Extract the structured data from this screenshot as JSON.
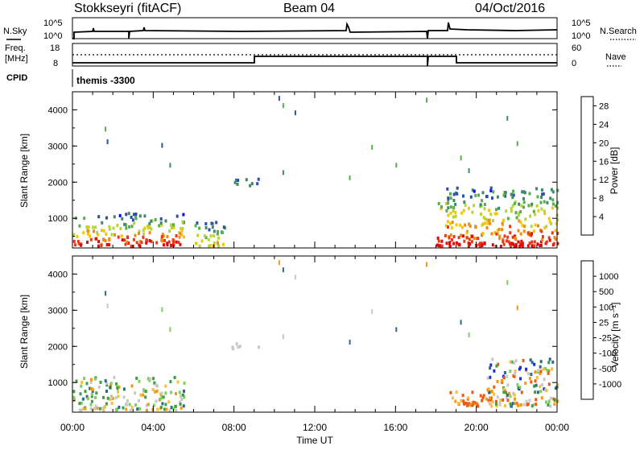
{
  "header": {
    "station": "Stokkseyri (fitACF)",
    "beam": "Beam 04",
    "date": "04/Oct/2016"
  },
  "nsky_panel": {
    "left_label": "N.Sky",
    "right_label": "N.Search",
    "left_ticks": [
      "10^5",
      "10^0"
    ],
    "right_ticks": [
      "10^5",
      "10^0"
    ]
  },
  "freq_panel": {
    "left_label_1": "Freq.",
    "left_label_2": "[MHz]",
    "left_ticks": [
      "18",
      "8"
    ],
    "right_label": "Nave",
    "right_ticks": [
      "60",
      "0"
    ]
  },
  "cpid_panel": {
    "label": "CPID",
    "program": "themis -3300"
  },
  "colors": {
    "power_scale": [
      "#0b0bf0",
      "#2a50a8",
      "#3f8a6a",
      "#56b04a",
      "#b6d632",
      "#f5c50c",
      "#f08a10",
      "#e83a18",
      "#e00a0a"
    ],
    "velocity_scale": [
      "#e01010",
      "#f05a10",
      "#f59a10",
      "#f5c040",
      "#c8c8c8",
      "#7ed05a",
      "#3aa040",
      "#2e6a8a",
      "#1a2fd0"
    ]
  },
  "chart_data": [
    {
      "type": "heatmap",
      "title": "Power",
      "xlabel": "",
      "ylabel": "Slant Range [km]",
      "x_ticks": [
        "00:00",
        "04:00",
        "08:00",
        "12:00",
        "16:00",
        "20:00",
        "00:00"
      ],
      "y_ticks": [
        "1000",
        "2000",
        "3000",
        "4000"
      ],
      "ylim": [
        180,
        4500
      ],
      "xlim_hours": [
        0,
        24
      ],
      "colorbar": {
        "label": "Power [dB]",
        "ticks": [
          "4",
          "8",
          "12",
          "16",
          "20",
          "24",
          "28"
        ],
        "range": [
          0,
          30
        ]
      },
      "blobs": [
        {
          "t0": 0.0,
          "t1": 5.5,
          "r0": 180,
          "r1": 1100,
          "intensity": "high-near-range"
        },
        {
          "t0": 6.0,
          "t1": 7.5,
          "r0": 180,
          "r1": 900,
          "intensity": "medium"
        },
        {
          "t0": 7.8,
          "t1": 9.2,
          "r0": 1850,
          "r1": 2050,
          "intensity": "low"
        },
        {
          "t0": 18.0,
          "t1": 24.0,
          "r0": 180,
          "r1": 1800,
          "intensity": "high-near-range"
        }
      ]
    },
    {
      "type": "heatmap",
      "title": "Velocity",
      "xlabel": "Time UT",
      "ylabel": "Slant Range [km]",
      "x_ticks": [
        "00:00",
        "04:00",
        "08:00",
        "12:00",
        "16:00",
        "20:00",
        "00:00"
      ],
      "y_ticks": [
        "1000",
        "2000",
        "3000",
        "4000"
      ],
      "ylim": [
        180,
        4500
      ],
      "xlim_hours": [
        0,
        24
      ],
      "colorbar": {
        "label": "Velocity [m s⁻¹]",
        "ticks": [
          "1000",
          "500",
          "100",
          "25",
          "-25",
          "-100",
          "-500",
          "-1000"
        ]
      },
      "blobs": [
        {
          "t0": 0.0,
          "t1": 5.5,
          "r0": 180,
          "r1": 1100,
          "class": "mixed-green-grey"
        },
        {
          "t0": 7.8,
          "t1": 9.2,
          "r0": 1850,
          "r1": 2050,
          "class": "ground-scatter"
        },
        {
          "t0": 18.5,
          "t1": 21.0,
          "r0": 300,
          "r1": 900,
          "class": "negative-orange"
        },
        {
          "t0": 20.5,
          "t1": 24.0,
          "r0": 300,
          "r1": 1600,
          "class": "mixed"
        }
      ]
    }
  ]
}
